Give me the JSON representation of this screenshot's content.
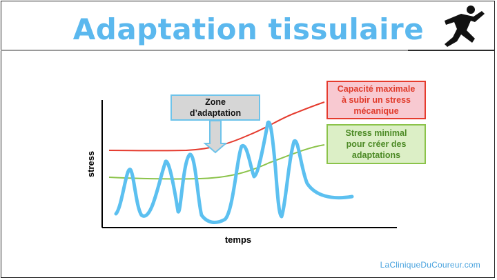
{
  "title": "Adaptation tissulaire",
  "axes": {
    "ylabel": "stress",
    "xlabel": "temps"
  },
  "annotations": {
    "zone": "Zone\nd’adaptation",
    "capacity": "Capacité maximale\nà subir un stress\nmécanique",
    "minimum": "Stress minimal\npour créer des\nadaptations"
  },
  "footer": "LaCliniqueDuCoureur.com",
  "colors": {
    "title": "#5bb8ee",
    "capacity_curve": "#e53b2e",
    "minimum_curve": "#8bc34a",
    "stress_curve": "#5cc0f0",
    "zone_arrow": "#6ec3ea"
  },
  "icons": {
    "logo": "runner-icon"
  }
}
